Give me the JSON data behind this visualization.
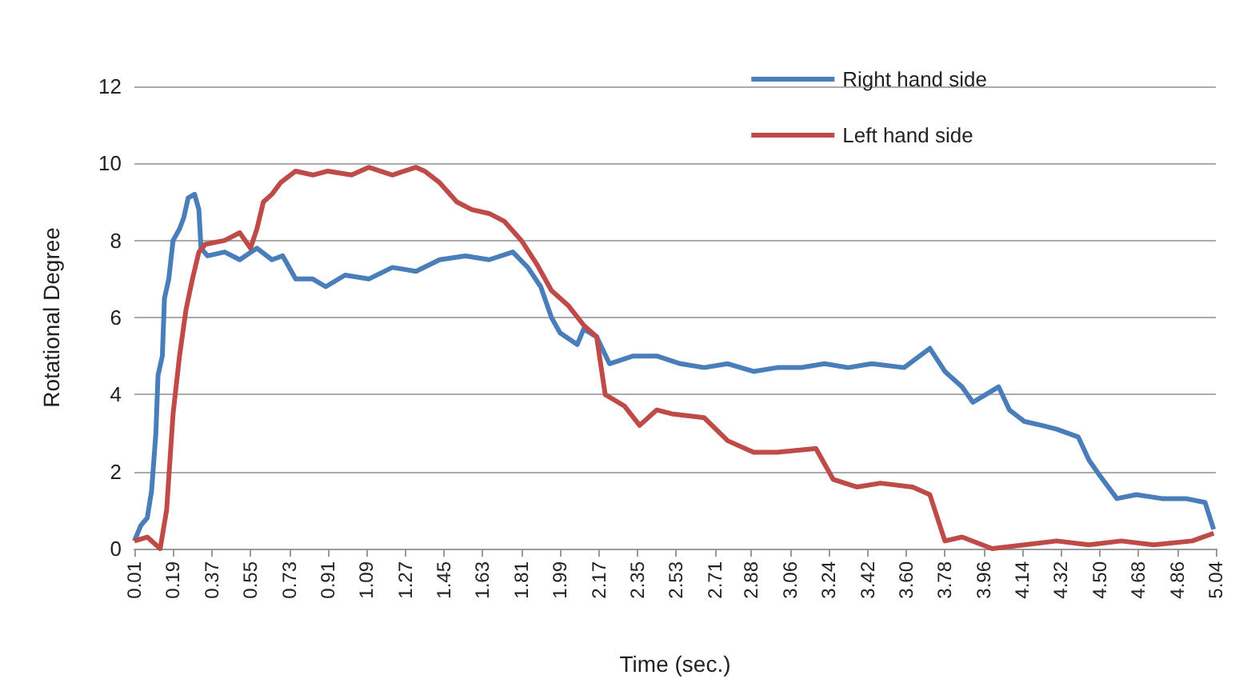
{
  "chart_data": {
    "type": "line",
    "xlabel": "Time (sec.)",
    "ylabel": "Rotational Degree",
    "xlim": [
      0.01,
      5.04
    ],
    "xticks": [
      {
        "value": 0.01,
        "label": "0.01"
      },
      {
        "value": 0.19,
        "label": "0.19"
      },
      {
        "value": 0.37,
        "label": "0.37"
      },
      {
        "value": 0.55,
        "label": "0.55"
      },
      {
        "value": 0.73,
        "label": "0.73"
      },
      {
        "value": 0.91,
        "label": "0.91"
      },
      {
        "value": 1.09,
        "label": "1.09"
      },
      {
        "value": 1.27,
        "label": "1.27"
      },
      {
        "value": 1.45,
        "label": "1.45"
      },
      {
        "value": 1.63,
        "label": "1.63"
      },
      {
        "value": 1.81,
        "label": "1.81"
      },
      {
        "value": 1.99,
        "label": "1.99"
      },
      {
        "value": 2.17,
        "label": "2.17"
      },
      {
        "value": 2.35,
        "label": "2.35"
      },
      {
        "value": 2.53,
        "label": "2.53"
      },
      {
        "value": 2.71,
        "label": "2.71"
      },
      {
        "value": 2.88,
        "label": "2.88"
      },
      {
        "value": 3.06,
        "label": "3.06"
      },
      {
        "value": 3.24,
        "label": "3.24"
      },
      {
        "value": 3.42,
        "label": "3.42"
      },
      {
        "value": 3.6,
        "label": "3.60"
      },
      {
        "value": 3.78,
        "label": "3.78"
      },
      {
        "value": 3.96,
        "label": "3.96"
      },
      {
        "value": 4.14,
        "label": "4.14"
      },
      {
        "value": 4.32,
        "label": "4.32"
      },
      {
        "value": 4.5,
        "label": "4.50"
      },
      {
        "value": 4.68,
        "label": "4.68"
      },
      {
        "value": 4.86,
        "label": "4.86"
      },
      {
        "value": 5.04,
        "label": "5.04"
      }
    ],
    "ylim": [
      0,
      12
    ],
    "yticks": [
      0,
      2,
      4,
      6,
      8,
      10,
      12
    ],
    "grid": "y",
    "legend": "top right",
    "marker": "none",
    "line_style": "solid",
    "series": [
      {
        "name": "Right hand side",
        "color": "#4a7ebb",
        "x": [
          0.01,
          0.04,
          0.07,
          0.09,
          0.11,
          0.12,
          0.14,
          0.15,
          0.17,
          0.19,
          0.22,
          0.24,
          0.26,
          0.29,
          0.31,
          0.32,
          0.35,
          0.43,
          0.5,
          0.58,
          0.65,
          0.7,
          0.76,
          0.84,
          0.9,
          0.99,
          1.1,
          1.21,
          1.32,
          1.43,
          1.55,
          1.66,
          1.77,
          1.84,
          1.9,
          1.95,
          1.99,
          2.07,
          2.1,
          2.16,
          2.22,
          2.33,
          2.44,
          2.55,
          2.66,
          2.77,
          2.89,
          3.0,
          3.11,
          3.22,
          3.33,
          3.44,
          3.59,
          3.71,
          3.78,
          3.86,
          3.91,
          3.97,
          4.03,
          4.08,
          4.15,
          4.23,
          4.3,
          4.4,
          4.45,
          4.5,
          4.58,
          4.67,
          4.79,
          4.9,
          4.99,
          5.03
        ],
        "values": [
          0.2,
          0.6,
          0.8,
          1.5,
          3,
          4.5,
          5,
          6.5,
          7,
          8,
          8.3,
          8.6,
          9.1,
          9.2,
          8.8,
          7.8,
          7.6,
          7.7,
          7.5,
          7.8,
          7.5,
          7.6,
          7.0,
          7.0,
          6.8,
          7.1,
          7.0,
          7.3,
          7.2,
          7.5,
          7.6,
          7.5,
          7.7,
          7.3,
          6.8,
          6.0,
          5.6,
          5.3,
          5.7,
          5.5,
          4.8,
          5.0,
          5.0,
          4.8,
          4.7,
          4.8,
          4.6,
          4.7,
          4.7,
          4.8,
          4.7,
          4.8,
          4.7,
          5.2,
          4.6,
          4.2,
          3.8,
          4.0,
          4.2,
          3.6,
          3.3,
          3.2,
          3.1,
          2.9,
          2.3,
          1.9,
          1.3,
          1.4,
          1.3,
          1.3,
          1.2,
          0.5
        ]
      },
      {
        "name": "Left hand side",
        "color": "#be4b48",
        "x": [
          0.01,
          0.07,
          0.13,
          0.16,
          0.19,
          0.22,
          0.25,
          0.28,
          0.31,
          0.34,
          0.43,
          0.5,
          0.55,
          0.58,
          0.61,
          0.65,
          0.69,
          0.76,
          0.84,
          0.91,
          1.02,
          1.1,
          1.21,
          1.32,
          1.36,
          1.43,
          1.51,
          1.58,
          1.66,
          1.73,
          1.81,
          1.88,
          1.95,
          2.03,
          2.1,
          2.16,
          2.2,
          2.29,
          2.36,
          2.44,
          2.51,
          2.66,
          2.77,
          2.89,
          3.0,
          3.18,
          3.26,
          3.37,
          3.48,
          3.63,
          3.71,
          3.78,
          3.86,
          4.0,
          4.15,
          4.3,
          4.45,
          4.6,
          4.75,
          4.93,
          5.03
        ],
        "values": [
          0.2,
          0.3,
          0,
          1,
          3.5,
          5,
          6.2,
          7,
          7.7,
          7.9,
          8.0,
          8.2,
          7.8,
          8.3,
          9,
          9.2,
          9.5,
          9.8,
          9.7,
          9.8,
          9.7,
          9.9,
          9.7,
          9.9,
          9.8,
          9.5,
          9.0,
          8.8,
          8.7,
          8.5,
          8.0,
          7.4,
          6.7,
          6.3,
          5.8,
          5.5,
          4.0,
          3.7,
          3.2,
          3.6,
          3.5,
          3.4,
          2.8,
          2.5,
          2.5,
          2.6,
          1.8,
          1.6,
          1.7,
          1.6,
          1.4,
          0.2,
          0.3,
          0,
          0.1,
          0.2,
          0.1,
          0.2,
          0.1,
          0.2,
          0.4
        ]
      }
    ]
  }
}
